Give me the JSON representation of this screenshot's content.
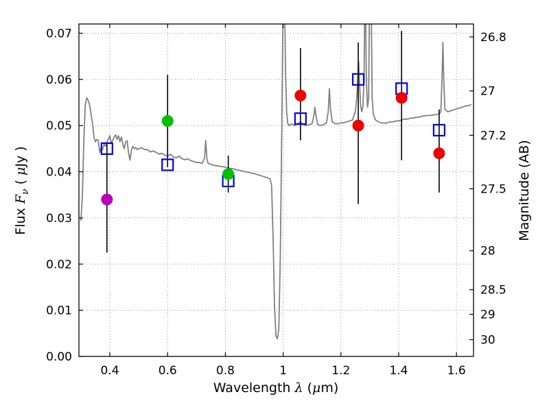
{
  "chart_data": {
    "type": "line",
    "title": "",
    "xlabel": "Wavelength λ (μm)",
    "xlabel_parts": [
      {
        "t": "Wavelength  ",
        "s": "plain"
      },
      {
        "t": "λ",
        "s": "math"
      },
      {
        "t": "  (",
        "s": "plain"
      },
      {
        "t": "μ",
        "s": "math"
      },
      {
        "t": "m)",
        "s": "plain"
      }
    ],
    "ylabel_left": "Flux Fν ( μJy )",
    "ylabel_left_parts": [
      {
        "t": "Flux  ",
        "s": "plain"
      },
      {
        "t": "F",
        "s": "math"
      },
      {
        "t": "ν",
        "s": "mathsub"
      },
      {
        "t": "  ( ",
        "s": "plain"
      },
      {
        "t": "μ",
        "s": "math"
      },
      {
        "t": "Jy )",
        "s": "plain"
      }
    ],
    "ylabel_right": "Magnitude (AB)",
    "ylabel_right_parts": [
      {
        "t": "Magnitude (AB)",
        "s": "plain"
      }
    ],
    "xlim": [
      0.293,
      1.659
    ],
    "ylim": [
      0.0,
      0.072
    ],
    "grid": "dotted",
    "legend": "none",
    "x_ticks": [
      {
        "value": 0.4,
        "label": "0.4"
      },
      {
        "value": 0.6,
        "label": "0.6"
      },
      {
        "value": 0.8,
        "label": "0.8"
      },
      {
        "value": 1.0,
        "label": "1"
      },
      {
        "value": 1.2,
        "label": "1.2"
      },
      {
        "value": 1.4,
        "label": "1.4"
      },
      {
        "value": 1.6,
        "label": "1.6"
      }
    ],
    "y_ticks_left": [
      {
        "value": 0.0,
        "label": "0.00"
      },
      {
        "value": 0.01,
        "label": "0.01"
      },
      {
        "value": 0.02,
        "label": "0.02"
      },
      {
        "value": 0.03,
        "label": "0.03"
      },
      {
        "value": 0.04,
        "label": "0.04"
      },
      {
        "value": 0.05,
        "label": "0.05"
      },
      {
        "value": 0.06,
        "label": "0.06"
      },
      {
        "value": 0.07,
        "label": "0.07"
      }
    ],
    "y_ticks_right": [
      {
        "flux": 0.0692,
        "label": "26.8"
      },
      {
        "flux": 0.0575,
        "label": "27"
      },
      {
        "flux": 0.0479,
        "label": "27.2"
      },
      {
        "flux": 0.0363,
        "label": "27.5"
      },
      {
        "flux": 0.0229,
        "label": "28"
      },
      {
        "flux": 0.01445,
        "label": "28.5"
      },
      {
        "flux": 0.00912,
        "label": "29"
      },
      {
        "flux": 0.00363,
        "label": "30"
      }
    ],
    "colors": {
      "spectrum": "#808080",
      "model_marker": "#0000dd",
      "errorbar": "#000000",
      "grid": "#999999",
      "frame": "#000000",
      "background": "#ffffff"
    },
    "series": [
      {
        "name": "model-spectrum",
        "type": "line",
        "color": "#808080",
        "points": [
          [
            0.3,
            0.0295
          ],
          [
            0.305,
            0.035
          ],
          [
            0.31,
            0.047
          ],
          [
            0.315,
            0.0545
          ],
          [
            0.32,
            0.056
          ],
          [
            0.325,
            0.0555
          ],
          [
            0.33,
            0.0545
          ],
          [
            0.335,
            0.0525
          ],
          [
            0.34,
            0.0505
          ],
          [
            0.345,
            0.0475
          ],
          [
            0.35,
            0.0465
          ],
          [
            0.355,
            0.047
          ],
          [
            0.36,
            0.0468
          ],
          [
            0.365,
            0.0442
          ],
          [
            0.37,
            0.0452
          ],
          [
            0.375,
            0.0448
          ],
          [
            0.38,
            0.046
          ],
          [
            0.385,
            0.0455
          ],
          [
            0.39,
            0.0465
          ],
          [
            0.395,
            0.047
          ],
          [
            0.4,
            0.0478
          ],
          [
            0.405,
            0.0462
          ],
          [
            0.41,
            0.0468
          ],
          [
            0.415,
            0.0475
          ],
          [
            0.42,
            0.048
          ],
          [
            0.425,
            0.047
          ],
          [
            0.43,
            0.0478
          ],
          [
            0.435,
            0.0465
          ],
          [
            0.44,
            0.0475
          ],
          [
            0.445,
            0.046
          ],
          [
            0.45,
            0.045
          ],
          [
            0.455,
            0.0465
          ],
          [
            0.46,
            0.0467
          ],
          [
            0.465,
            0.044
          ],
          [
            0.47,
            0.0425
          ],
          [
            0.475,
            0.0448
          ],
          [
            0.48,
            0.0455
          ],
          [
            0.485,
            0.045
          ],
          [
            0.49,
            0.0452
          ],
          [
            0.495,
            0.0448
          ],
          [
            0.5,
            0.045
          ],
          [
            0.51,
            0.0452
          ],
          [
            0.52,
            0.0448
          ],
          [
            0.53,
            0.0448
          ],
          [
            0.54,
            0.0443
          ],
          [
            0.55,
            0.0445
          ],
          [
            0.56,
            0.0442
          ],
          [
            0.57,
            0.0438
          ],
          [
            0.58,
            0.044
          ],
          [
            0.59,
            0.0436
          ],
          [
            0.6,
            0.0434
          ],
          [
            0.61,
            0.0438
          ],
          [
            0.62,
            0.0432
          ],
          [
            0.63,
            0.043
          ],
          [
            0.64,
            0.0434
          ],
          [
            0.65,
            0.0428
          ],
          [
            0.66,
            0.0426
          ],
          [
            0.67,
            0.0428
          ],
          [
            0.68,
            0.0424
          ],
          [
            0.69,
            0.0422
          ],
          [
            0.7,
            0.042
          ],
          [
            0.71,
            0.042
          ],
          [
            0.72,
            0.0418
          ],
          [
            0.728,
            0.043
          ],
          [
            0.732,
            0.0468
          ],
          [
            0.736,
            0.0428
          ],
          [
            0.74,
            0.0418
          ],
          [
            0.75,
            0.0416
          ],
          [
            0.76,
            0.0414
          ],
          [
            0.77,
            0.0413
          ],
          [
            0.78,
            0.0412
          ],
          [
            0.79,
            0.0411
          ],
          [
            0.8,
            0.041
          ],
          [
            0.81,
            0.0408
          ],
          [
            0.82,
            0.0407
          ],
          [
            0.83,
            0.0406
          ],
          [
            0.84,
            0.0404
          ],
          [
            0.85,
            0.0403
          ],
          [
            0.86,
            0.0401
          ],
          [
            0.87,
            0.04
          ],
          [
            0.88,
            0.0399
          ],
          [
            0.89,
            0.0397
          ],
          [
            0.9,
            0.0396
          ],
          [
            0.91,
            0.0394
          ],
          [
            0.92,
            0.0392
          ],
          [
            0.93,
            0.039
          ],
          [
            0.94,
            0.0388
          ],
          [
            0.95,
            0.0386
          ],
          [
            0.955,
            0.0384
          ],
          [
            0.96,
            0.037
          ],
          [
            0.965,
            0.026
          ],
          [
            0.97,
            0.011
          ],
          [
            0.975,
            0.0045
          ],
          [
            0.98,
            0.0038
          ],
          [
            0.985,
            0.006
          ],
          [
            0.99,
            0.021
          ],
          [
            0.995,
            0.048
          ],
          [
            1.0,
            0.078
          ],
          [
            1.004,
            0.082
          ],
          [
            1.008,
            0.062
          ],
          [
            1.012,
            0.053
          ],
          [
            1.016,
            0.0505
          ],
          [
            1.02,
            0.05
          ],
          [
            1.03,
            0.0504
          ],
          [
            1.04,
            0.05
          ],
          [
            1.05,
            0.0504
          ],
          [
            1.06,
            0.0508
          ],
          [
            1.07,
            0.0502
          ],
          [
            1.08,
            0.05
          ],
          [
            1.09,
            0.0502
          ],
          [
            1.1,
            0.0504
          ],
          [
            1.106,
            0.052
          ],
          [
            1.11,
            0.054
          ],
          [
            1.114,
            0.052
          ],
          [
            1.12,
            0.0502
          ],
          [
            1.13,
            0.05
          ],
          [
            1.14,
            0.0502
          ],
          [
            1.15,
            0.0506
          ],
          [
            1.156,
            0.053
          ],
          [
            1.16,
            0.058
          ],
          [
            1.164,
            0.0535
          ],
          [
            1.17,
            0.0508
          ],
          [
            1.18,
            0.0504
          ],
          [
            1.19,
            0.0504
          ],
          [
            1.2,
            0.0506
          ],
          [
            1.21,
            0.0506
          ],
          [
            1.22,
            0.0508
          ],
          [
            1.23,
            0.051
          ],
          [
            1.24,
            0.0512
          ],
          [
            1.25,
            0.053
          ],
          [
            1.255,
            0.056
          ],
          [
            1.258,
            0.06
          ],
          [
            1.261,
            0.064
          ],
          [
            1.264,
            0.06
          ],
          [
            1.268,
            0.0545
          ],
          [
            1.272,
            0.053
          ],
          [
            1.276,
            0.054
          ],
          [
            1.28,
            0.06
          ],
          [
            1.284,
            0.085
          ],
          [
            1.288,
            0.06
          ],
          [
            1.292,
            0.054
          ],
          [
            1.296,
            0.056
          ],
          [
            1.3,
            0.085
          ],
          [
            1.304,
            0.082
          ],
          [
            1.308,
            0.056
          ],
          [
            1.312,
            0.0525
          ],
          [
            1.32,
            0.0512
          ],
          [
            1.33,
            0.0508
          ],
          [
            1.34,
            0.0506
          ],
          [
            1.35,
            0.0505
          ],
          [
            1.36,
            0.0506
          ],
          [
            1.37,
            0.0508
          ],
          [
            1.38,
            0.0508
          ],
          [
            1.39,
            0.051
          ],
          [
            1.4,
            0.051
          ],
          [
            1.41,
            0.0512
          ],
          [
            1.42,
            0.0514
          ],
          [
            1.43,
            0.0514
          ],
          [
            1.44,
            0.0516
          ],
          [
            1.45,
            0.0516
          ],
          [
            1.46,
            0.0518
          ],
          [
            1.47,
            0.0518
          ],
          [
            1.48,
            0.052
          ],
          [
            1.49,
            0.0521
          ],
          [
            1.5,
            0.0522
          ],
          [
            1.51,
            0.0522
          ],
          [
            1.52,
            0.0523
          ],
          [
            1.53,
            0.0524
          ],
          [
            1.54,
            0.0525
          ],
          [
            1.546,
            0.053
          ],
          [
            1.55,
            0.06
          ],
          [
            1.553,
            0.068
          ],
          [
            1.556,
            0.06
          ],
          [
            1.56,
            0.0535
          ],
          [
            1.57,
            0.053
          ],
          [
            1.58,
            0.0532
          ],
          [
            1.59,
            0.0534
          ],
          [
            1.6,
            0.0536
          ],
          [
            1.61,
            0.0538
          ],
          [
            1.62,
            0.054
          ],
          [
            1.63,
            0.0542
          ],
          [
            1.64,
            0.0543
          ],
          [
            1.65,
            0.0545
          ]
        ]
      },
      {
        "name": "observed-photometry",
        "type": "scatter-errorbar",
        "marker": "circle",
        "points": [
          {
            "x": 0.39,
            "y": 0.034,
            "y_lo": 0.0225,
            "y_hi": 0.046,
            "color": "#bb00bb"
          },
          {
            "x": 0.6,
            "y": 0.051,
            "y_lo": 0.041,
            "y_hi": 0.061,
            "color": "#00c000"
          },
          {
            "x": 0.81,
            "y": 0.0395,
            "y_lo": 0.0355,
            "y_hi": 0.0435,
            "color": "#00c000"
          },
          {
            "x": 1.06,
            "y": 0.0565,
            "y_lo": 0.0468,
            "y_hi": 0.0668,
            "color": "#ee0000"
          },
          {
            "x": 1.26,
            "y": 0.05,
            "y_lo": 0.033,
            "y_hi": 0.068,
            "color": "#ee0000"
          },
          {
            "x": 1.41,
            "y": 0.056,
            "y_lo": 0.0425,
            "y_hi": 0.0705,
            "color": "#ee0000"
          },
          {
            "x": 1.54,
            "y": 0.044,
            "y_lo": 0.0355,
            "y_hi": 0.0535,
            "color": "#ee0000"
          }
        ]
      },
      {
        "name": "model-photometry",
        "type": "scatter",
        "marker": "open-square",
        "color": "#0000dd",
        "points": [
          [
            0.39,
            0.045
          ],
          [
            0.6,
            0.0415
          ],
          [
            0.81,
            0.038
          ],
          [
            1.06,
            0.0515
          ],
          [
            1.26,
            0.06
          ],
          [
            1.41,
            0.058
          ],
          [
            1.54,
            0.049
          ]
        ]
      }
    ]
  }
}
